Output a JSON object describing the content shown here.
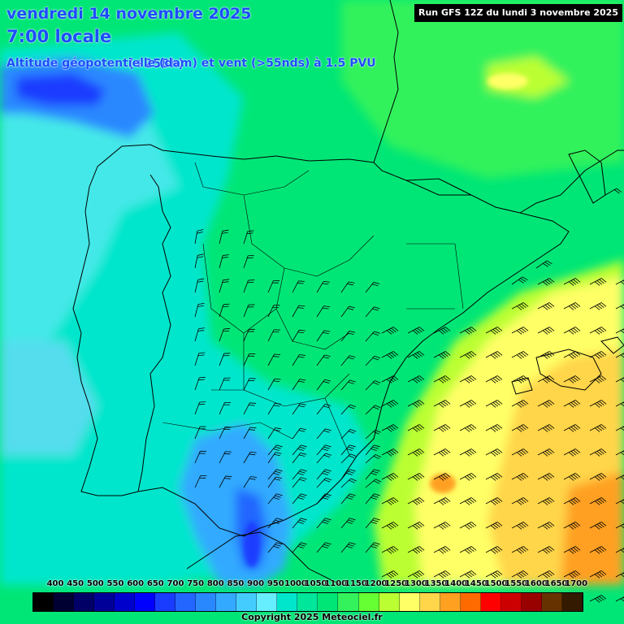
{
  "header": {
    "date": "vendredi 14 novembre 2025",
    "time": "7:00 locale",
    "lead": "(+258h)",
    "parameter": "Altitude géopotentielle (dam) et vent (>55nds) à 1.5 PVU",
    "run": "Run GFS 12Z du lundi 3 novembre 2025"
  },
  "legend": {
    "labels": [
      "400",
      "450",
      "500",
      "550",
      "600",
      "650",
      "700",
      "750",
      "800",
      "850",
      "900",
      "950",
      "1000",
      "1050",
      "1100",
      "1150",
      "1200",
      "1250",
      "1300",
      "1350",
      "1400",
      "1450",
      "1500",
      "1550",
      "1600",
      "1650",
      "1700"
    ],
    "colors": [
      "#000000",
      "#000033",
      "#000066",
      "#000099",
      "#0000cc",
      "#0000ff",
      "#1a3cff",
      "#2266ff",
      "#2a88ff",
      "#33aaff",
      "#44ccff",
      "#66eeff",
      "#00e6cc",
      "#00e69b",
      "#00e676",
      "#33f25c",
      "#66ff33",
      "#bbff33",
      "#ffff66",
      "#ffd54a",
      "#ffa020",
      "#ff6a00",
      "#ff0000",
      "#cc0000",
      "#990000",
      "#663300",
      "#331a00"
    ]
  },
  "copyright": "Copyright 2025 Meteociel.fr"
}
